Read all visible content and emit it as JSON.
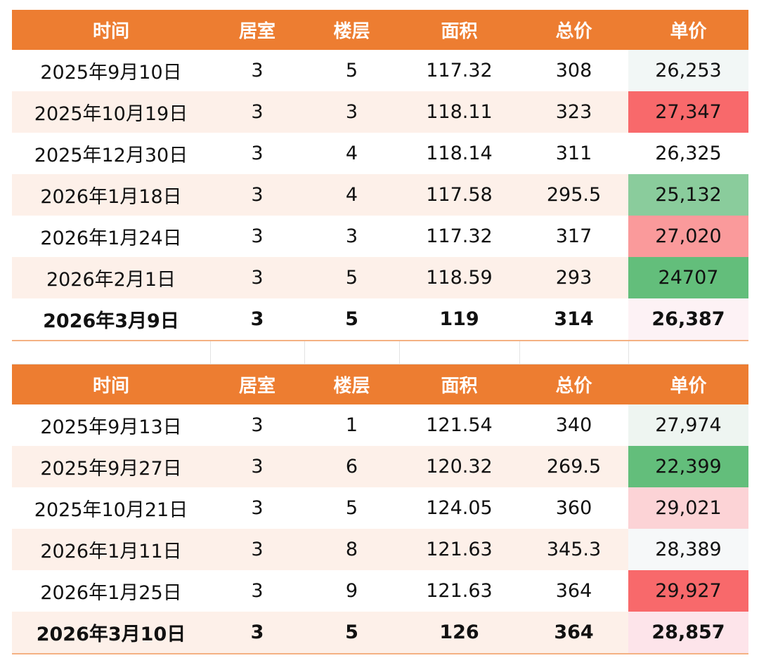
{
  "tables": [
    {
      "headers": [
        "时间",
        "居室",
        "楼层",
        "面积",
        "总价",
        "单价"
      ],
      "rows": [
        {
          "time": "2025年9月10日",
          "rooms": "3",
          "floor": "5",
          "area": "117.32",
          "total": "308",
          "unit": "26,253",
          "unit_color": "#F2F7F6",
          "bold": false
        },
        {
          "time": "2025年10月19日",
          "rooms": "3",
          "floor": "3",
          "area": "118.11",
          "total": "323",
          "unit": "27,347",
          "unit_color": "#F8696B",
          "bold": false
        },
        {
          "time": "2025年12月30日",
          "rooms": "3",
          "floor": "4",
          "area": "118.14",
          "total": "311",
          "unit": "26,325",
          "unit_color": "#FFFFFF",
          "bold": false
        },
        {
          "time": "2026年1月18日",
          "rooms": "3",
          "floor": "4",
          "area": "117.58",
          "total": "295.5",
          "unit": "25,132",
          "unit_color": "#8ACC9C",
          "bold": false
        },
        {
          "time": "2026年1月24日",
          "rooms": "3",
          "floor": "3",
          "area": "117.32",
          "total": "317",
          "unit": "27,020",
          "unit_color": "#FA9A9B",
          "bold": false
        },
        {
          "time": "2026年2月1日",
          "rooms": "3",
          "floor": "5",
          "area": "118.59",
          "total": "293",
          "unit": "24707",
          "unit_color": "#63BE7B",
          "bold": false
        },
        {
          "time": "2026年3月9日",
          "rooms": "3",
          "floor": "5",
          "area": "119",
          "total": "314",
          "unit": "26,387",
          "unit_color": "#FDF2F5",
          "bold": true
        }
      ]
    },
    {
      "headers": [
        "时间",
        "居室",
        "楼层",
        "面积",
        "总价",
        "单价"
      ],
      "rows": [
        {
          "time": "2025年9月13日",
          "rooms": "3",
          "floor": "1",
          "area": "121.54",
          "total": "340",
          "unit": "27,974",
          "unit_color": "#EEF5F1",
          "bold": false
        },
        {
          "time": "2025年9月27日",
          "rooms": "3",
          "floor": "6",
          "area": "120.32",
          "total": "269.5",
          "unit": "22,399",
          "unit_color": "#63BE7B",
          "bold": false
        },
        {
          "time": "2025年10月21日",
          "rooms": "3",
          "floor": "5",
          "area": "124.05",
          "total": "360",
          "unit": "29,021",
          "unit_color": "#FCD3D6",
          "bold": false
        },
        {
          "time": "2026年1月11日",
          "rooms": "3",
          "floor": "8",
          "area": "121.63",
          "total": "345.3",
          "unit": "28,389",
          "unit_color": "#F6F8F9",
          "bold": false
        },
        {
          "time": "2026年1月25日",
          "rooms": "3",
          "floor": "9",
          "area": "121.63",
          "total": "364",
          "unit": "29,927",
          "unit_color": "#F8696B",
          "bold": false
        },
        {
          "time": "2026年3月10日",
          "rooms": "3",
          "floor": "5",
          "area": "126",
          "total": "364",
          "unit": "28,857",
          "unit_color": "#FDE4EA",
          "bold": true
        }
      ]
    }
  ]
}
